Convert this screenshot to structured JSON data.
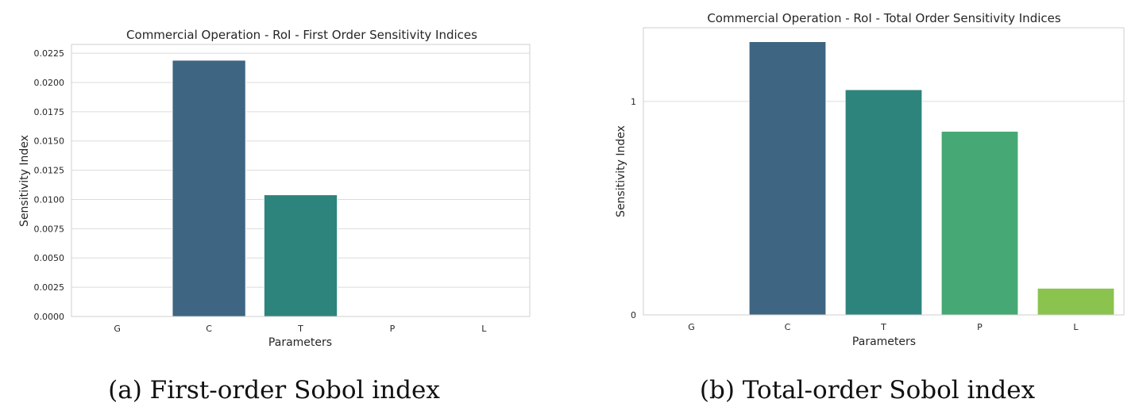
{
  "chart_data": [
    {
      "type": "bar",
      "title": "Commercial Operation - RoI - First Order Sensitivity Indices",
      "xlabel": "Parameters",
      "ylabel": "Sensitivity Index",
      "categories": [
        "G",
        "C",
        "T",
        "P",
        "L"
      ],
      "values": [
        0.0,
        0.0219,
        0.0104,
        0.0,
        0.0
      ],
      "colors": [
        "#482878",
        "#3e6582",
        "#2d847c",
        "#46a874",
        "#8bc34f"
      ],
      "ylim": [
        0,
        0.02325
      ],
      "yticks": [
        0.0,
        0.0025,
        0.005,
        0.0075,
        0.01,
        0.0125,
        0.015,
        0.0175,
        0.02,
        0.0225
      ],
      "ytick_labels": [
        "0.0000",
        "0.0025",
        "0.0050",
        "0.0075",
        "0.0100",
        "0.0125",
        "0.0150",
        "0.0175",
        "0.0200",
        "0.0225"
      ],
      "grid": true,
      "caption": "(a) First-order Sobol index"
    },
    {
      "type": "bar",
      "title": "Commercial Operation - RoI - Total Order Sensitivity Indices",
      "xlabel": "Parameters",
      "ylabel": "Sensitivity Index",
      "categories": [
        "G",
        "C",
        "T",
        "P",
        "L"
      ],
      "values": [
        0.0,
        1.28,
        1.055,
        0.86,
        0.125
      ],
      "colors": [
        "#482878",
        "#3e6582",
        "#2d847c",
        "#46a874",
        "#8bc34f"
      ],
      "ylim": [
        0,
        1.345
      ],
      "yticks": [
        0,
        1
      ],
      "ytick_labels": [
        "0",
        "1"
      ],
      "grid": true,
      "caption": "(b) Total-order Sobol index"
    }
  ]
}
